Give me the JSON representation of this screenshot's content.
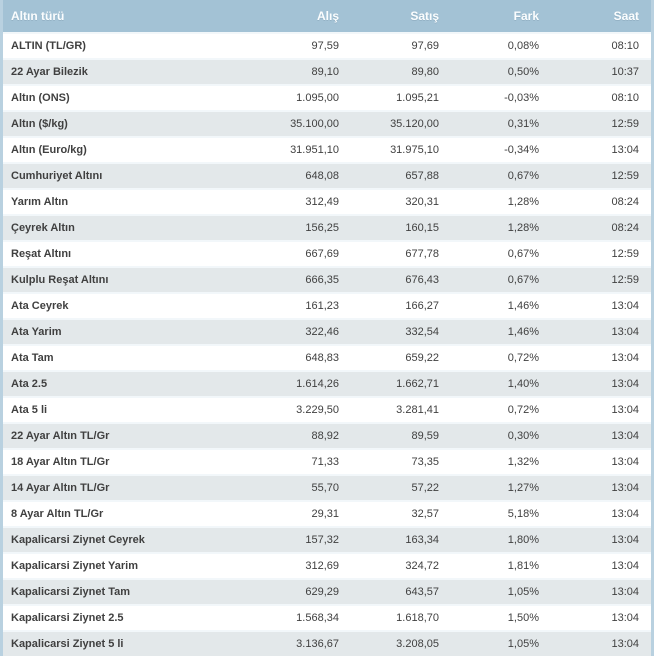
{
  "colors": {
    "header_bg": "#a3c2d5",
    "header_text": "#fbfdfe",
    "border": "#b9d1e0",
    "row_alt_bg": "#e3e8ea",
    "row_bg": "#ffffff",
    "body_text": "#404040",
    "row_separator": "#f2f7fa"
  },
  "table": {
    "columns": [
      {
        "key": "name",
        "label": "Altın türü",
        "align": "left"
      },
      {
        "key": "alis",
        "label": "Alış",
        "align": "right"
      },
      {
        "key": "satis",
        "label": "Satış",
        "align": "right"
      },
      {
        "key": "fark",
        "label": "Fark",
        "align": "right"
      },
      {
        "key": "saat",
        "label": "Saat",
        "align": "right"
      }
    ],
    "rows": [
      {
        "name": "ALTIN (TL/GR)",
        "alis": "97,59",
        "satis": "97,69",
        "fark": "0,08%",
        "saat": "08:10"
      },
      {
        "name": "22 Ayar Bilezik",
        "alis": "89,10",
        "satis": "89,80",
        "fark": "0,50%",
        "saat": "10:37"
      },
      {
        "name": "Altın (ONS)",
        "alis": "1.095,00",
        "satis": "1.095,21",
        "fark": "-0,03%",
        "saat": "08:10"
      },
      {
        "name": "Altın ($/kg)",
        "alis": "35.100,00",
        "satis": "35.120,00",
        "fark": "0,31%",
        "saat": "12:59"
      },
      {
        "name": "Altın (Euro/kg)",
        "alis": "31.951,10",
        "satis": "31.975,10",
        "fark": "-0,34%",
        "saat": "13:04"
      },
      {
        "name": "Cumhuriyet Altını",
        "alis": "648,08",
        "satis": "657,88",
        "fark": "0,67%",
        "saat": "12:59"
      },
      {
        "name": "Yarım Altın",
        "alis": "312,49",
        "satis": "320,31",
        "fark": "1,28%",
        "saat": "08:24"
      },
      {
        "name": "Çeyrek Altın",
        "alis": "156,25",
        "satis": "160,15",
        "fark": "1,28%",
        "saat": "08:24"
      },
      {
        "name": "Reşat Altını",
        "alis": "667,69",
        "satis": "677,78",
        "fark": "0,67%",
        "saat": "12:59"
      },
      {
        "name": "Kulplu Reşat Altını",
        "alis": "666,35",
        "satis": "676,43",
        "fark": "0,67%",
        "saat": "12:59"
      },
      {
        "name": "Ata Ceyrek",
        "alis": "161,23",
        "satis": "166,27",
        "fark": "1,46%",
        "saat": "13:04"
      },
      {
        "name": "Ata Yarim",
        "alis": "322,46",
        "satis": "332,54",
        "fark": "1,46%",
        "saat": "13:04"
      },
      {
        "name": "Ata Tam",
        "alis": "648,83",
        "satis": "659,22",
        "fark": "0,72%",
        "saat": "13:04"
      },
      {
        "name": "Ata 2.5",
        "alis": "1.614,26",
        "satis": "1.662,71",
        "fark": "1,40%",
        "saat": "13:04"
      },
      {
        "name": "Ata 5 li",
        "alis": "3.229,50",
        "satis": "3.281,41",
        "fark": "0,72%",
        "saat": "13:04"
      },
      {
        "name": "22 Ayar Altın TL/Gr",
        "alis": "88,92",
        "satis": "89,59",
        "fark": "0,30%",
        "saat": "13:04"
      },
      {
        "name": "18 Ayar Altın TL/Gr",
        "alis": "71,33",
        "satis": "73,35",
        "fark": "1,32%",
        "saat": "13:04"
      },
      {
        "name": "14 Ayar Altın TL/Gr",
        "alis": "55,70",
        "satis": "57,22",
        "fark": "1,27%",
        "saat": "13:04"
      },
      {
        "name": "8 Ayar Altın TL/Gr",
        "alis": "29,31",
        "satis": "32,57",
        "fark": "5,18%",
        "saat": "13:04"
      },
      {
        "name": "Kapalicarsi Ziynet Ceyrek",
        "alis": "157,32",
        "satis": "163,34",
        "fark": "1,80%",
        "saat": "13:04"
      },
      {
        "name": "Kapalicarsi Ziynet Yarim",
        "alis": "312,69",
        "satis": "324,72",
        "fark": "1,81%",
        "saat": "13:04"
      },
      {
        "name": "Kapalicarsi Ziynet Tam",
        "alis": "629,29",
        "satis": "643,57",
        "fark": "1,05%",
        "saat": "13:04"
      },
      {
        "name": "Kapalicarsi Ziynet 2.5",
        "alis": "1.568,34",
        "satis": "1.618,70",
        "fark": "1,50%",
        "saat": "13:04"
      },
      {
        "name": "Kapalicarsi Ziynet 5 li",
        "alis": "3.136,67",
        "satis": "3.208,05",
        "fark": "1,05%",
        "saat": "13:04"
      }
    ]
  }
}
